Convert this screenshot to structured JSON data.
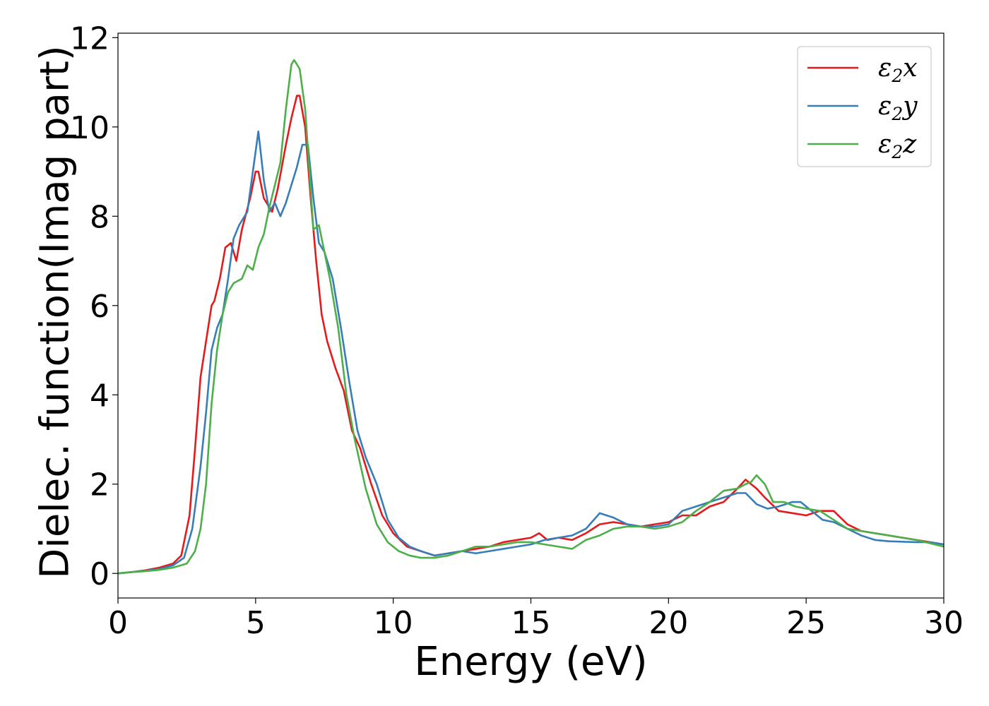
{
  "chart_data": {
    "type": "line",
    "title": "",
    "xlabel": "Energy (eV)",
    "ylabel": "Dielec. function(Imag part)",
    "xlim": [
      0,
      30
    ],
    "ylim": [
      -0.55,
      12.1
    ],
    "xticks": [
      0,
      5,
      10,
      15,
      20,
      25,
      30
    ],
    "yticks": [
      0,
      2,
      4,
      6,
      8,
      10,
      12
    ],
    "grid": false,
    "legend_position": "top-right",
    "series": [
      {
        "name": "ε2x",
        "label_main": "ε",
        "label_sub": "2",
        "label_suffix": "x",
        "color": "#e41a1c",
        "x": [
          0,
          0.5,
          1.0,
          1.5,
          2.0,
          2.3,
          2.6,
          2.8,
          3.0,
          3.2,
          3.4,
          3.5,
          3.7,
          3.9,
          4.1,
          4.3,
          4.5,
          4.8,
          5.0,
          5.1,
          5.3,
          5.6,
          5.8,
          6.1,
          6.3,
          6.5,
          6.6,
          6.8,
          7.0,
          7.2,
          7.4,
          7.6,
          7.9,
          8.2,
          8.5,
          8.8,
          9.2,
          9.6,
          10.0,
          10.5,
          11.0,
          11.5,
          12.0,
          12.5,
          13.0,
          13.5,
          14.0,
          14.5,
          15.0,
          15.3,
          15.6,
          16.0,
          16.5,
          17.0,
          17.5,
          18.0,
          18.5,
          19.0,
          19.5,
          20.0,
          20.5,
          21.0,
          21.5,
          22.0,
          22.5,
          22.8,
          23.2,
          23.5,
          24.0,
          24.5,
          25.0,
          25.5,
          26.0,
          26.5,
          27.0,
          28.0,
          29.0,
          30.0
        ],
        "y": [
          0,
          0.03,
          0.07,
          0.13,
          0.22,
          0.4,
          1.3,
          2.8,
          4.4,
          5.2,
          6.0,
          6.1,
          6.6,
          7.3,
          7.4,
          7.0,
          7.7,
          8.4,
          9.0,
          9.0,
          8.4,
          8.1,
          8.6,
          9.6,
          10.2,
          10.7,
          10.7,
          10.0,
          8.4,
          7.0,
          5.8,
          5.2,
          4.6,
          4.1,
          3.2,
          2.8,
          2.0,
          1.3,
          0.9,
          0.6,
          0.5,
          0.4,
          0.45,
          0.5,
          0.55,
          0.6,
          0.7,
          0.75,
          0.8,
          0.9,
          0.75,
          0.8,
          0.75,
          0.9,
          1.1,
          1.15,
          1.1,
          1.05,
          1.1,
          1.15,
          1.3,
          1.3,
          1.5,
          1.6,
          1.9,
          2.1,
          1.9,
          1.7,
          1.4,
          1.35,
          1.3,
          1.4,
          1.4,
          1.1,
          0.95,
          0.85,
          0.75,
          0.65
        ]
      },
      {
        "name": "ε2y",
        "label_main": "ε",
        "label_sub": "2",
        "label_suffix": "y",
        "color": "#377eb8",
        "x": [
          0,
          0.5,
          1.0,
          1.5,
          2.0,
          2.4,
          2.7,
          3.0,
          3.2,
          3.4,
          3.6,
          3.8,
          4.0,
          4.2,
          4.4,
          4.7,
          4.9,
          5.1,
          5.3,
          5.5,
          5.7,
          5.9,
          6.1,
          6.3,
          6.5,
          6.7,
          6.9,
          7.1,
          7.3,
          7.5,
          7.8,
          8.1,
          8.4,
          8.7,
          9.0,
          9.4,
          9.8,
          10.2,
          10.6,
          11.0,
          11.5,
          12.0,
          12.5,
          13.0,
          13.5,
          14.0,
          14.5,
          15.0,
          15.5,
          16.0,
          16.5,
          17.0,
          17.5,
          18.0,
          18.5,
          19.0,
          19.5,
          20.0,
          20.5,
          21.0,
          21.5,
          22.0,
          22.5,
          22.8,
          23.2,
          23.6,
          24.0,
          24.5,
          24.8,
          25.2,
          25.6,
          26.0,
          26.5,
          27.0,
          27.5,
          28.0,
          29.0,
          29.5,
          30.0
        ],
        "y": [
          0,
          0.03,
          0.06,
          0.1,
          0.18,
          0.35,
          1.0,
          2.4,
          3.6,
          5.0,
          5.5,
          5.8,
          6.6,
          7.5,
          7.8,
          8.1,
          9.0,
          9.9,
          8.8,
          8.1,
          8.3,
          8.0,
          8.3,
          8.7,
          9.1,
          9.6,
          9.6,
          8.4,
          7.4,
          7.2,
          6.6,
          5.5,
          4.3,
          3.2,
          2.6,
          2.0,
          1.2,
          0.8,
          0.6,
          0.5,
          0.4,
          0.45,
          0.5,
          0.45,
          0.5,
          0.55,
          0.6,
          0.65,
          0.75,
          0.8,
          0.85,
          1.0,
          1.35,
          1.25,
          1.1,
          1.05,
          1.05,
          1.1,
          1.4,
          1.5,
          1.6,
          1.7,
          1.8,
          1.8,
          1.55,
          1.45,
          1.5,
          1.6,
          1.6,
          1.4,
          1.2,
          1.15,
          1.0,
          0.85,
          0.75,
          0.72,
          0.7,
          0.7,
          0.65
        ]
      },
      {
        "name": "ε2z",
        "label_main": "ε",
        "label_sub": "2",
        "label_suffix": "z",
        "color": "#4daf4a",
        "x": [
          0,
          0.5,
          1.0,
          1.5,
          2.0,
          2.5,
          2.8,
          3.0,
          3.2,
          3.4,
          3.6,
          3.8,
          4.0,
          4.2,
          4.5,
          4.7,
          4.9,
          5.1,
          5.3,
          5.5,
          5.7,
          5.9,
          6.1,
          6.3,
          6.4,
          6.6,
          6.8,
          7.0,
          7.1,
          7.3,
          7.5,
          7.7,
          8.0,
          8.3,
          8.6,
          9.0,
          9.4,
          9.8,
          10.2,
          10.6,
          11.0,
          11.5,
          12.0,
          12.5,
          13.0,
          13.5,
          14.0,
          14.5,
          15.0,
          15.5,
          16.0,
          16.5,
          17.0,
          17.5,
          18.0,
          18.5,
          19.0,
          19.5,
          20.0,
          20.5,
          21.0,
          21.5,
          22.0,
          22.5,
          22.8,
          23.0,
          23.2,
          23.5,
          23.8,
          24.2,
          24.6,
          25.0,
          25.5,
          26.0,
          26.5,
          27.0,
          27.5,
          28.0,
          29.0,
          30.0
        ],
        "y": [
          0,
          0.03,
          0.05,
          0.08,
          0.13,
          0.22,
          0.5,
          1.0,
          2.0,
          3.8,
          5.0,
          5.8,
          6.3,
          6.5,
          6.6,
          6.9,
          6.8,
          7.3,
          7.6,
          8.2,
          8.7,
          9.2,
          10.4,
          11.4,
          11.5,
          11.3,
          10.4,
          8.6,
          7.7,
          7.8,
          7.2,
          6.6,
          5.5,
          4.0,
          3.0,
          1.9,
          1.1,
          0.7,
          0.5,
          0.4,
          0.35,
          0.35,
          0.4,
          0.5,
          0.6,
          0.6,
          0.65,
          0.7,
          0.7,
          0.65,
          0.6,
          0.55,
          0.75,
          0.85,
          1.0,
          1.05,
          1.05,
          1.0,
          1.05,
          1.15,
          1.4,
          1.6,
          1.85,
          1.9,
          2.0,
          2.05,
          2.2,
          2.0,
          1.6,
          1.6,
          1.5,
          1.45,
          1.4,
          1.2,
          1.0,
          0.95,
          0.9,
          0.85,
          0.75,
          0.6
        ]
      }
    ]
  }
}
